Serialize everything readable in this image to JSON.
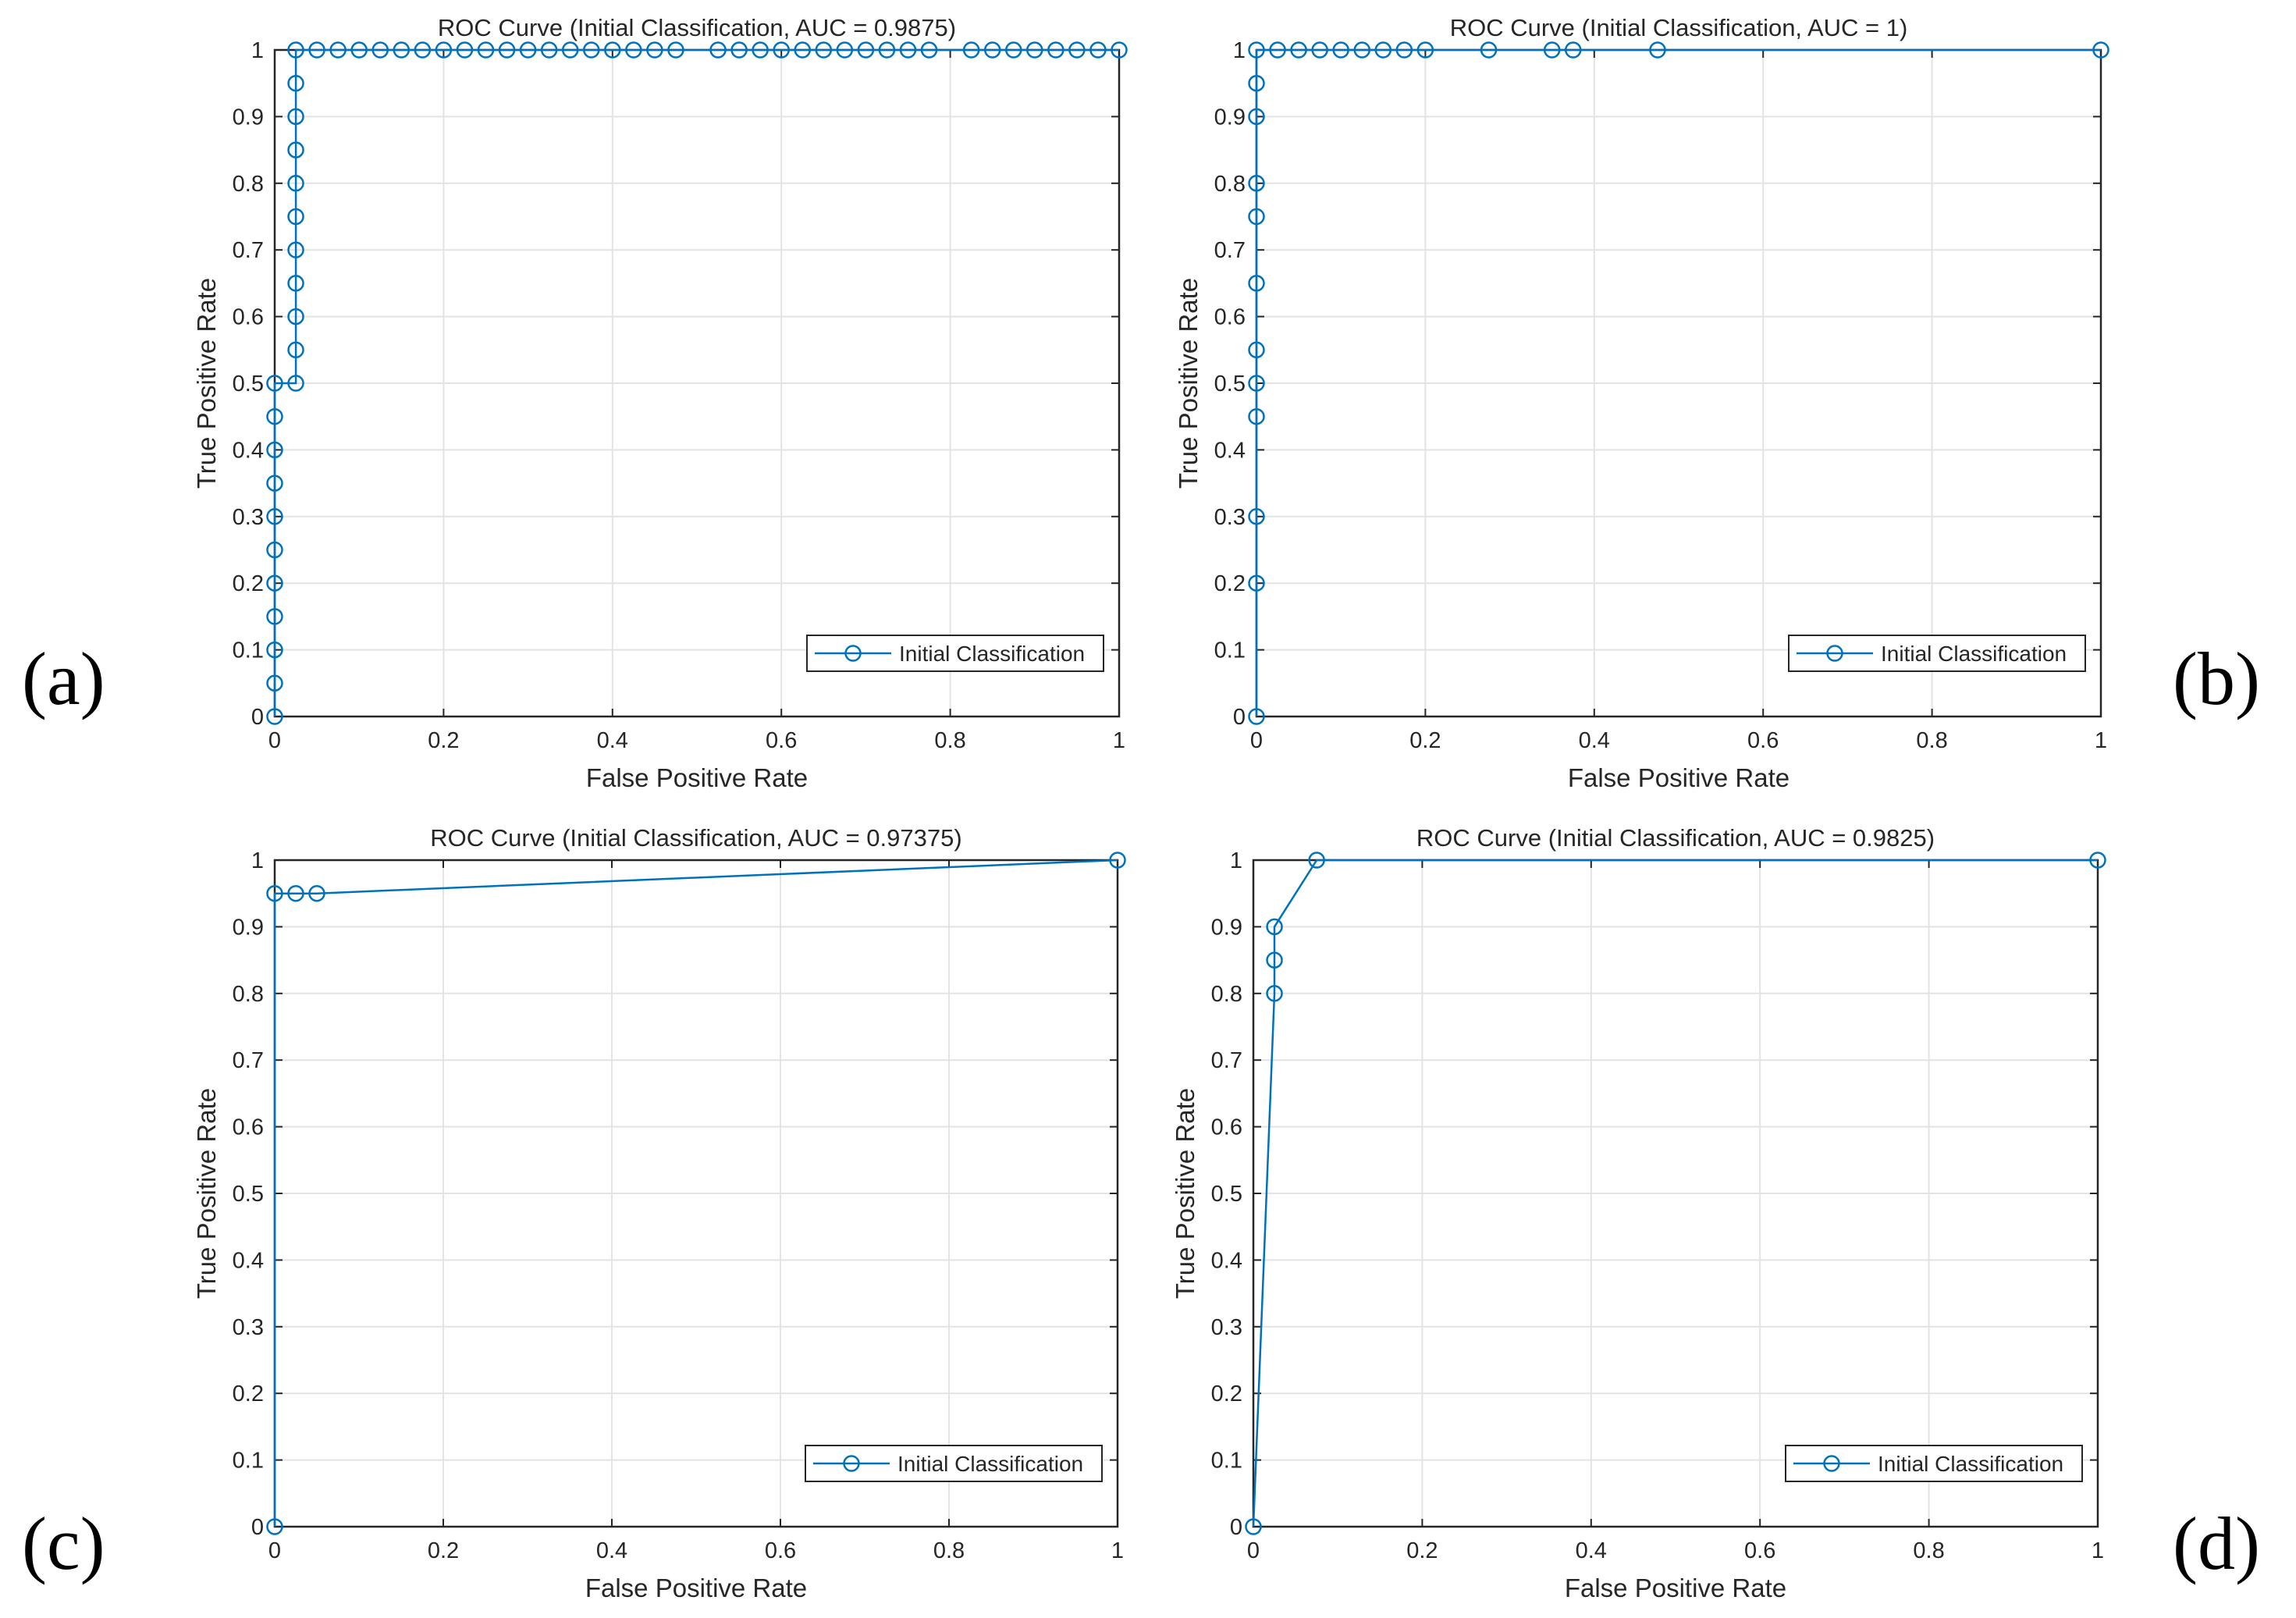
{
  "figure": {
    "panel_letters": [
      "(a)",
      "(b)",
      "(c)",
      "(d)"
    ]
  },
  "colors": {
    "line": "#0072BD",
    "grid": "#E3E3E3",
    "axis": "#262626"
  },
  "chart_data": [
    {
      "type": "line",
      "title": "ROC Curve (Initial Classification, AUC = 0.9875)",
      "xlabel": "False Positive Rate",
      "ylabel": "True Positive Rate",
      "xlim": [
        0,
        1
      ],
      "ylim": [
        0,
        1
      ],
      "xticks": [
        "0",
        "0.2",
        "0.4",
        "0.6",
        "0.8",
        "1"
      ],
      "yticks": [
        "0",
        "0.1",
        "0.2",
        "0.3",
        "0.4",
        "0.5",
        "0.6",
        "0.7",
        "0.8",
        "0.9",
        "1"
      ],
      "grid": true,
      "legend_position": "bottom-right",
      "marker": "circle",
      "series": [
        {
          "name": "Initial Classification",
          "x": [
            0,
            0,
            0,
            0,
            0,
            0,
            0,
            0,
            0,
            0,
            0,
            0.025,
            0.025,
            0.025,
            0.025,
            0.025,
            0.025,
            0.025,
            0.025,
            0.025,
            0.025,
            0.025,
            0.05,
            0.075,
            0.1,
            0.125,
            0.15,
            0.175,
            0.2,
            0.225,
            0.25,
            0.275,
            0.3,
            0.325,
            0.35,
            0.375,
            0.4,
            0.425,
            0.45,
            0.475,
            0.525,
            0.55,
            0.575,
            0.6,
            0.625,
            0.65,
            0.675,
            0.7,
            0.725,
            0.75,
            0.775,
            0.825,
            0.85,
            0.875,
            0.9,
            0.925,
            0.95,
            0.975,
            1
          ],
          "y": [
            0,
            0.05,
            0.1,
            0.15,
            0.2,
            0.25,
            0.3,
            0.35,
            0.4,
            0.45,
            0.5,
            0.5,
            0.55,
            0.6,
            0.65,
            0.7,
            0.75,
            0.8,
            0.85,
            0.9,
            0.95,
            1,
            1,
            1,
            1,
            1,
            1,
            1,
            1,
            1,
            1,
            1,
            1,
            1,
            1,
            1,
            1,
            1,
            1,
            1,
            1,
            1,
            1,
            1,
            1,
            1,
            1,
            1,
            1,
            1,
            1,
            1,
            1,
            1,
            1,
            1,
            1,
            1,
            1
          ]
        }
      ]
    },
    {
      "type": "line",
      "title": "ROC Curve (Initial Classification, AUC = 1)",
      "xlabel": "False Positive Rate",
      "ylabel": "True Positive Rate",
      "xlim": [
        0,
        1
      ],
      "ylim": [
        0,
        1
      ],
      "xticks": [
        "0",
        "0.2",
        "0.4",
        "0.6",
        "0.8",
        "1"
      ],
      "yticks": [
        "0",
        "0.1",
        "0.2",
        "0.3",
        "0.4",
        "0.5",
        "0.6",
        "0.7",
        "0.8",
        "0.9",
        "1"
      ],
      "grid": true,
      "legend_position": "bottom-right",
      "marker": "circle",
      "series": [
        {
          "name": "Initial Classification",
          "x": [
            0,
            0,
            0,
            0,
            0,
            0,
            0,
            0,
            0,
            0,
            0,
            0,
            0.025,
            0.05,
            0.075,
            0.1,
            0.125,
            0.15,
            0.175,
            0.2,
            0.275,
            0.35,
            0.375,
            0.475,
            1
          ],
          "y": [
            0,
            0.2,
            0.3,
            0.45,
            0.5,
            0.55,
            0.65,
            0.75,
            0.8,
            0.9,
            0.95,
            1,
            1,
            1,
            1,
            1,
            1,
            1,
            1,
            1,
            1,
            1,
            1,
            1,
            1
          ]
        }
      ]
    },
    {
      "type": "line",
      "title": "ROC Curve (Initial Classification, AUC = 0.97375)",
      "xlabel": "False Positive Rate",
      "ylabel": "True Positive Rate",
      "xlim": [
        0,
        1
      ],
      "ylim": [
        0,
        1
      ],
      "xticks": [
        "0",
        "0.2",
        "0.4",
        "0.6",
        "0.8",
        "1"
      ],
      "yticks": [
        "0",
        "0.1",
        "0.2",
        "0.3",
        "0.4",
        "0.5",
        "0.6",
        "0.7",
        "0.8",
        "0.9",
        "1"
      ],
      "grid": true,
      "legend_position": "bottom-right",
      "marker": "circle",
      "series": [
        {
          "name": "Initial Classification",
          "x": [
            0,
            0,
            0.025,
            0.05,
            1
          ],
          "y": [
            0,
            0.95,
            0.95,
            0.95,
            1
          ]
        }
      ]
    },
    {
      "type": "line",
      "title": "ROC Curve (Initial Classification, AUC = 0.9825)",
      "xlabel": "False Positive Rate",
      "ylabel": "True Positive Rate",
      "xlim": [
        0,
        1
      ],
      "ylim": [
        0,
        1
      ],
      "xticks": [
        "0",
        "0.2",
        "0.4",
        "0.6",
        "0.8",
        "1"
      ],
      "yticks": [
        "0",
        "0.1",
        "0.2",
        "0.3",
        "0.4",
        "0.5",
        "0.6",
        "0.7",
        "0.8",
        "0.9",
        "1"
      ],
      "grid": true,
      "legend_position": "bottom-right",
      "marker": "circle",
      "series": [
        {
          "name": "Initial Classification",
          "x": [
            0,
            0.025,
            0.025,
            0.025,
            0.075,
            1
          ],
          "y": [
            0,
            0.8,
            0.85,
            0.9,
            1,
            1
          ]
        }
      ]
    }
  ]
}
